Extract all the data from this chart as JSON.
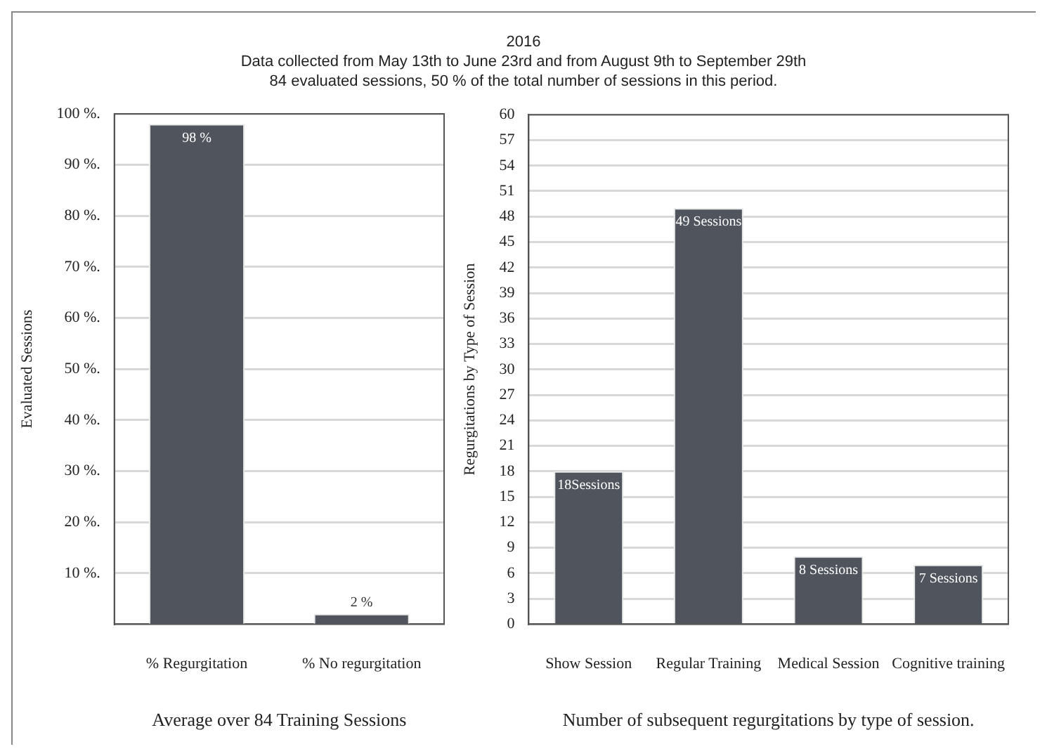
{
  "chart_data": [
    {
      "type": "bar",
      "subtitle": "Data collected from May 13th to June 23rd and from August 9th to September 29th\n84 evaluated sessions, 50 % of the total number of sessions in this period.",
      "categories": [
        "% Regurgitation",
        "% No regurgitation"
      ],
      "values": [
        98,
        2
      ],
      "color": "#50545c",
      "value_labels": [
        "98 %",
        "2 %"
      ],
      "xlabel": "Average over 84 Training Sessions",
      "ylabel": "Evaluated Sessions",
      "ylim": [
        0,
        100
      ],
      "yticks": [
        {
          "value": 10,
          "label": "10 %."
        },
        {
          "value": 20,
          "label": "20 %."
        },
        {
          "value": 30,
          "label": "30 %."
        },
        {
          "value": 40,
          "label": "40 %."
        },
        {
          "value": 50,
          "label": "50 %."
        },
        {
          "value": 60,
          "label": "60 %."
        },
        {
          "value": 70,
          "label": "70 %."
        },
        {
          "value": 80,
          "label": "80 %."
        },
        {
          "value": 90,
          "label": "90 %."
        },
        {
          "value": 100,
          "label": "100 %."
        }
      ],
      "grid": "y"
    },
    {
      "type": "bar",
      "title": "2016",
      "categories": [
        "Show Session",
        "Regular Training",
        "Medical Session",
        "Cognitive training"
      ],
      "values": [
        18,
        49,
        8,
        7
      ],
      "color": "#50545c",
      "value_labels": [
        "18Sessions",
        "49 Sessions",
        "8 Sessions",
        "7 Sessions"
      ],
      "xlabel": "Number of subsequent regurgitations by type of session.",
      "ylabel": "Regurgitations by Type of Session",
      "ylim": [
        0,
        60
      ],
      "yticks": [
        0,
        3,
        6,
        9,
        12,
        15,
        18,
        21,
        24,
        27,
        30,
        33,
        36,
        39,
        42,
        45,
        48,
        51,
        54,
        57,
        60
      ],
      "grid": "y"
    }
  ]
}
